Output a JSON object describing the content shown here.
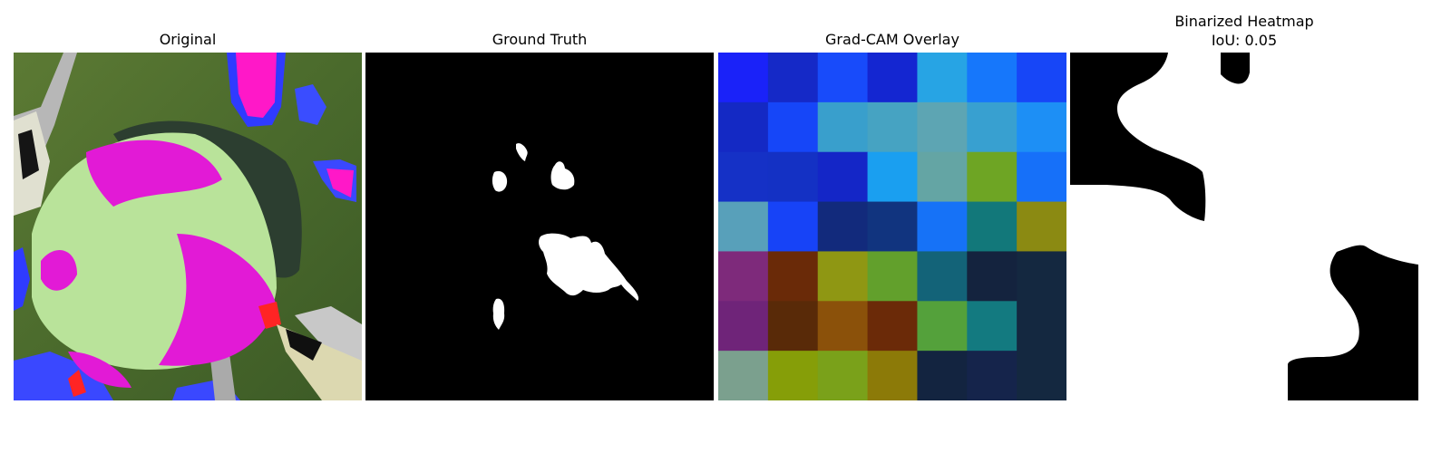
{
  "panels": [
    {
      "title": "Original"
    },
    {
      "title": "Ground Truth"
    },
    {
      "title": "Grad-CAM Overlay"
    },
    {
      "title_line1": "Binarized Heatmap",
      "title_line2": "IoU: 0.05"
    }
  ],
  "gradcam": {
    "rows": 7,
    "cols": 7,
    "cell_colors": [
      [
        "#1a22f9",
        "#1529c7",
        "#184bfa",
        "#1426d1",
        "#27a4e4",
        "#1677fb",
        "#1746f7"
      ],
      [
        "#1429c4",
        "#1646f8",
        "#399fcc",
        "#46a3c2",
        "#5da5b3",
        "#38a0d0",
        "#1d8ff5"
      ],
      [
        "#1531c6",
        "#1431c4",
        "#1426c7",
        "#1a9ff0",
        "#64a5a4",
        "#6ea524",
        "#1670f9"
      ],
      [
        "#58a0ba",
        "#1743f7",
        "#122a7c",
        "#11347f",
        "#1672f7",
        "#12787a",
        "#8b8a12"
      ],
      [
        "#7e2a7b",
        "#6a2a08",
        "#8f9713",
        "#62a02c",
        "#136378",
        "#14233e",
        "#142840"
      ],
      [
        "#6f2479",
        "#592a08",
        "#8b510a",
        "#6b2a08",
        "#54a13b",
        "#137a80",
        "#142840"
      ],
      [
        "#7ba08e",
        "#869e08",
        "#7aa11a",
        "#8c7a08",
        "#132440",
        "#15244b",
        "#142840"
      ]
    ]
  }
}
